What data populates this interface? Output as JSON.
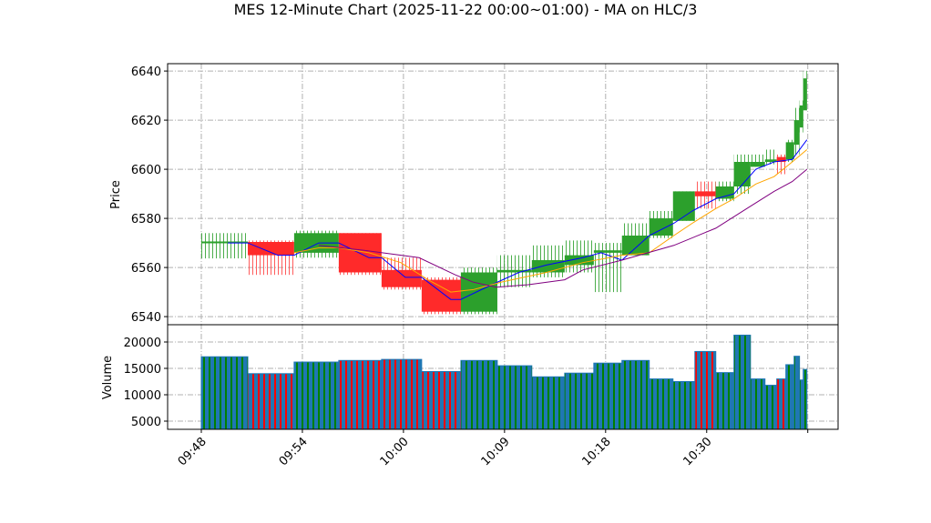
{
  "chart_data": {
    "type": "candlestick",
    "title": "MES 12-Minute Chart (2025-11-22 00:00~01:00) - MA on HLC/3",
    "price_panel": {
      "ylabel": "Price",
      "ylim": [
        6536.7,
        6643
      ],
      "yticks": [
        6540,
        6560,
        6580,
        6600,
        6620,
        6640
      ]
    },
    "volume_panel": {
      "ylabel": "Volume",
      "ylim": [
        3448,
        23276
      ],
      "yticks": [
        5000,
        10000,
        15000,
        20000
      ]
    },
    "xlim": [
      -2,
      37.8
    ],
    "xticks": [
      {
        "pos": 0,
        "label": "09:48"
      },
      {
        "pos": 6,
        "label": "09:54"
      },
      {
        "pos": 12,
        "label": "10:00"
      },
      {
        "pos": 18,
        "label": "10:09"
      },
      {
        "pos": 24,
        "label": "10:18"
      },
      {
        "pos": 30,
        "label": "10:30"
      },
      {
        "pos": 36,
        "label": ""
      }
    ],
    "grid": true,
    "colors": {
      "up": "#2ca02c",
      "down": "#ff2a2a",
      "volume": "#1f77b4",
      "ma_fast": "#0000ff",
      "ma_mid": "#ffa500",
      "ma_slow": "#800080"
    },
    "candles": [
      {
        "start": 0,
        "end": 2.76,
        "open": 6570.4,
        "high": 6574,
        "low": 6563.7,
        "close": 6570.6,
        "volume": 17200
      },
      {
        "start": 2.76,
        "end": 5.51,
        "open": 6570.4,
        "high": 6571,
        "low": 6557,
        "close": 6565,
        "volume": 14000
      },
      {
        "start": 5.51,
        "end": 8.16,
        "open": 6566,
        "high": 6575,
        "low": 6564,
        "close": 6574,
        "volume": 16200
      },
      {
        "start": 8.16,
        "end": 10.7,
        "open": 6574,
        "high": 6574,
        "low": 6557,
        "close": 6558,
        "volume": 16500
      },
      {
        "start": 10.7,
        "end": 13.08,
        "open": 6559,
        "high": 6564,
        "low": 6551,
        "close": 6552,
        "volume": 16700
      },
      {
        "start": 13.08,
        "end": 15.41,
        "open": 6555,
        "high": 6556,
        "low": 6541,
        "close": 6542,
        "volume": 14400
      },
      {
        "start": 15.41,
        "end": 17.57,
        "open": 6542,
        "high": 6560,
        "low": 6541,
        "close": 6558,
        "volume": 16500
      },
      {
        "start": 17.57,
        "end": 19.62,
        "open": 6558,
        "high": 6565,
        "low": 6552,
        "close": 6559,
        "volume": 15500
      },
      {
        "start": 19.62,
        "end": 21.57,
        "open": 6558,
        "high": 6569,
        "low": 6556,
        "close": 6563,
        "volume": 13400
      },
      {
        "start": 21.57,
        "end": 23.3,
        "open": 6561,
        "high": 6571,
        "low": 6558,
        "close": 6565,
        "volume": 14100
      },
      {
        "start": 23.3,
        "end": 24.97,
        "open": 6566,
        "high": 6570,
        "low": 6550,
        "close": 6567,
        "volume": 16000
      },
      {
        "start": 24.97,
        "end": 26.59,
        "open": 6565,
        "high": 6578,
        "low": 6565,
        "close": 6573,
        "volume": 16500
      },
      {
        "start": 26.59,
        "end": 28.0,
        "open": 6573,
        "high": 6583,
        "low": 6572,
        "close": 6580,
        "volume": 13000
      },
      {
        "start": 28.0,
        "end": 29.3,
        "open": 6579,
        "high": 6591,
        "low": 6579,
        "close": 6591,
        "volume": 12500
      },
      {
        "start": 29.3,
        "end": 30.54,
        "open": 6591,
        "high": 6595,
        "low": 6584,
        "close": 6589,
        "volume": 18200
      },
      {
        "start": 30.54,
        "end": 31.62,
        "open": 6588,
        "high": 6595,
        "low": 6587,
        "close": 6593,
        "volume": 14200
      },
      {
        "start": 31.62,
        "end": 32.6,
        "open": 6593,
        "high": 6606,
        "low": 6590,
        "close": 6603,
        "volume": 21300
      },
      {
        "start": 32.6,
        "end": 33.46,
        "open": 6601,
        "high": 6606,
        "low": 6601,
        "close": 6603,
        "volume": 13000
      },
      {
        "start": 33.46,
        "end": 34.16,
        "open": 6603,
        "high": 6608,
        "low": 6602,
        "close": 6604,
        "volume": 11800
      },
      {
        "start": 34.16,
        "end": 34.7,
        "open": 6605,
        "high": 6606,
        "low": 6598,
        "close": 6603,
        "volume": 13000
      },
      {
        "start": 34.7,
        "end": 35.19,
        "open": 6604,
        "high": 6612,
        "low": 6603,
        "close": 6611,
        "volume": 15700
      },
      {
        "start": 35.19,
        "end": 35.51,
        "open": 6610,
        "high": 6625,
        "low": 6606,
        "close": 6620,
        "volume": 17300
      },
      {
        "start": 35.51,
        "end": 35.73,
        "open": 6617,
        "high": 6628,
        "low": 6615,
        "close": 6626,
        "volume": 12800
      },
      {
        "start": 35.73,
        "end": 35.95,
        "open": 6624,
        "high": 6640,
        "low": 6624,
        "close": 6637,
        "volume": 14800
      }
    ],
    "ma_lines": [
      {
        "name": "ma_fast",
        "points": [
          [
            1.57,
            6570
          ],
          [
            2.76,
            6570
          ],
          [
            4.54,
            6565
          ],
          [
            5.51,
            6565
          ],
          [
            6.97,
            6570
          ],
          [
            8.16,
            6570
          ],
          [
            9.95,
            6564
          ],
          [
            10.7,
            6564
          ],
          [
            12.11,
            6556
          ],
          [
            13.08,
            6556
          ],
          [
            14.81,
            6547
          ],
          [
            15.41,
            6547
          ],
          [
            17.24,
            6553
          ],
          [
            18.86,
            6558
          ],
          [
            20.49,
            6561
          ],
          [
            22.65,
            6564
          ],
          [
            23.73,
            6566
          ],
          [
            24.97,
            6563
          ],
          [
            26.59,
            6573
          ],
          [
            28.05,
            6578
          ],
          [
            29.14,
            6583
          ],
          [
            30.54,
            6588
          ],
          [
            31.62,
            6590
          ],
          [
            32.92,
            6600
          ],
          [
            34,
            6603
          ],
          [
            35.08,
            6604
          ],
          [
            35.95,
            6612
          ]
        ]
      },
      {
        "name": "ma_mid",
        "points": [
          [
            5.51,
            6566
          ],
          [
            6.97,
            6568
          ],
          [
            8.16,
            6568
          ],
          [
            9.95,
            6566
          ],
          [
            11.84,
            6562
          ],
          [
            13.46,
            6555
          ],
          [
            14.81,
            6550
          ],
          [
            16.16,
            6551
          ],
          [
            17.78,
            6554
          ],
          [
            20.49,
            6558
          ],
          [
            22.65,
            6562
          ],
          [
            24.97,
            6565
          ],
          [
            26.59,
            6566
          ],
          [
            28.05,
            6573
          ],
          [
            29.14,
            6578
          ],
          [
            30.54,
            6584
          ],
          [
            31.62,
            6588
          ],
          [
            32.92,
            6594
          ],
          [
            34,
            6597
          ],
          [
            35.08,
            6603
          ],
          [
            35.95,
            6608
          ]
        ]
      },
      {
        "name": "ma_slow",
        "points": [
          [
            6.97,
            6569
          ],
          [
            9.68,
            6567
          ],
          [
            12.92,
            6564
          ],
          [
            15.08,
            6557
          ],
          [
            16.16,
            6554
          ],
          [
            17.51,
            6552
          ],
          [
            19.41,
            6553
          ],
          [
            21.57,
            6555
          ],
          [
            22.65,
            6559
          ],
          [
            24.97,
            6563
          ],
          [
            28.05,
            6569
          ],
          [
            30.54,
            6576
          ],
          [
            32.38,
            6584
          ],
          [
            34,
            6591
          ],
          [
            35.08,
            6595
          ],
          [
            35.95,
            6600
          ]
        ]
      }
    ]
  }
}
